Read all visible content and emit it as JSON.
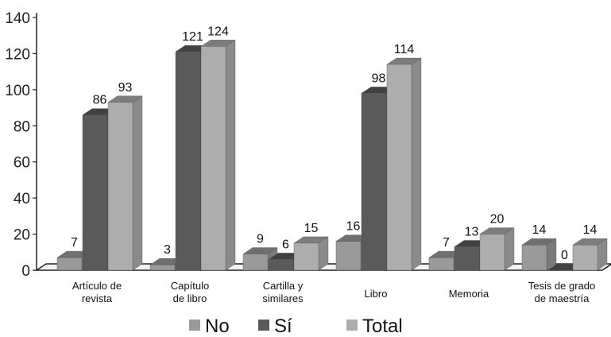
{
  "chart_data": {
    "type": "bar",
    "title": "",
    "xlabel": "",
    "ylabel": "",
    "ylim": [
      0,
      140
    ],
    "yticks": [
      0,
      20,
      40,
      60,
      80,
      100,
      120,
      140
    ],
    "grid": false,
    "legend_position": "bottom",
    "categories": [
      [
        "Artículo de",
        "revista"
      ],
      [
        "Capítulo",
        "de libro"
      ],
      [
        "Cartilla y",
        "similares"
      ],
      [
        "Libro"
      ],
      [
        "Memoria"
      ],
      [
        "Tesis de grado",
        "de maestría"
      ]
    ],
    "series": [
      {
        "name": "No",
        "values": [
          7,
          3,
          9,
          16,
          7,
          14
        ],
        "color": "#9a9a9a"
      },
      {
        "name": "Sí",
        "values": [
          86,
          121,
          6,
          98,
          13,
          0
        ],
        "color": "#5a5a5a"
      },
      {
        "name": "Total",
        "values": [
          93,
          124,
          15,
          114,
          20,
          14
        ],
        "color": "#adadad"
      }
    ]
  }
}
